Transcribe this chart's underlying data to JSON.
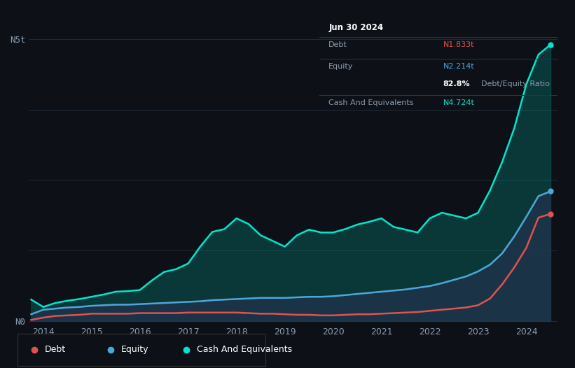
{
  "background_color": "#0d1117",
  "plot_bg_color": "#0d1117",
  "grid_color": "#1e2a38",
  "xlim": [
    2013.7,
    2024.65
  ],
  "ylim": [
    -0.05,
    5.3
  ],
  "ytick_positions": [
    0,
    5
  ],
  "ytick_labels": [
    "N0",
    "N5t"
  ],
  "xtick_positions": [
    2014,
    2015,
    2016,
    2017,
    2018,
    2019,
    2020,
    2021,
    2022,
    2023,
    2024
  ],
  "xtick_labels": [
    "2014",
    "2015",
    "2016",
    "2017",
    "2018",
    "2019",
    "2020",
    "2021",
    "2022",
    "2023",
    "2024"
  ],
  "debt_color": "#e05252",
  "equity_color": "#4da6d8",
  "cash_color": "#00e5cc",
  "fill_cash_color": "#00e5cc",
  "fill_equity_color": "#1a3a4a",
  "tooltip_bg": "#111111",
  "tooltip_border": "#333333",
  "tooltip_date": "Jun 30 2024",
  "tooltip_debt_label": "Debt",
  "tooltip_debt_value": "N1.833t",
  "tooltip_equity_label": "Equity",
  "tooltip_equity_value": "N2.214t",
  "tooltip_ratio": "82.8%",
  "tooltip_ratio_label": "Debt/Equity Ratio",
  "tooltip_cash_label": "Cash And Equivalents",
  "tooltip_cash_value": "N4.724t",
  "legend_labels": [
    "Debt",
    "Equity",
    "Cash And Equivalents"
  ],
  "years": [
    2013.75,
    2014.0,
    2014.25,
    2014.5,
    2014.75,
    2015.0,
    2015.25,
    2015.5,
    2015.75,
    2016.0,
    2016.25,
    2016.5,
    2016.75,
    2017.0,
    2017.25,
    2017.5,
    2017.75,
    2018.0,
    2018.25,
    2018.5,
    2018.75,
    2019.0,
    2019.25,
    2019.5,
    2019.75,
    2020.0,
    2020.25,
    2020.5,
    2020.75,
    2021.0,
    2021.25,
    2021.5,
    2021.75,
    2022.0,
    2022.25,
    2022.5,
    2022.75,
    2023.0,
    2023.25,
    2023.5,
    2023.75,
    2024.0,
    2024.25,
    2024.5
  ],
  "debt": [
    0.02,
    0.06,
    0.09,
    0.1,
    0.11,
    0.13,
    0.13,
    0.13,
    0.13,
    0.14,
    0.14,
    0.14,
    0.14,
    0.15,
    0.15,
    0.15,
    0.15,
    0.15,
    0.14,
    0.13,
    0.13,
    0.12,
    0.11,
    0.11,
    0.1,
    0.1,
    0.11,
    0.12,
    0.12,
    0.13,
    0.14,
    0.15,
    0.16,
    0.18,
    0.2,
    0.22,
    0.24,
    0.28,
    0.4,
    0.65,
    0.95,
    1.3,
    1.833,
    1.9
  ],
  "equity": [
    0.12,
    0.2,
    0.22,
    0.24,
    0.25,
    0.27,
    0.28,
    0.29,
    0.29,
    0.3,
    0.31,
    0.32,
    0.33,
    0.34,
    0.35,
    0.37,
    0.38,
    0.39,
    0.4,
    0.41,
    0.41,
    0.41,
    0.42,
    0.43,
    0.43,
    0.44,
    0.46,
    0.48,
    0.5,
    0.52,
    0.54,
    0.56,
    0.59,
    0.62,
    0.67,
    0.73,
    0.79,
    0.88,
    1.0,
    1.2,
    1.5,
    1.85,
    2.214,
    2.3
  ],
  "cash": [
    0.38,
    0.25,
    0.32,
    0.36,
    0.39,
    0.43,
    0.47,
    0.52,
    0.53,
    0.55,
    0.72,
    0.87,
    0.92,
    1.02,
    1.32,
    1.58,
    1.63,
    1.82,
    1.72,
    1.52,
    1.42,
    1.32,
    1.52,
    1.62,
    1.57,
    1.57,
    1.63,
    1.71,
    1.76,
    1.82,
    1.67,
    1.62,
    1.57,
    1.82,
    1.92,
    1.87,
    1.82,
    1.92,
    2.32,
    2.82,
    3.42,
    4.2,
    4.724,
    4.9
  ]
}
